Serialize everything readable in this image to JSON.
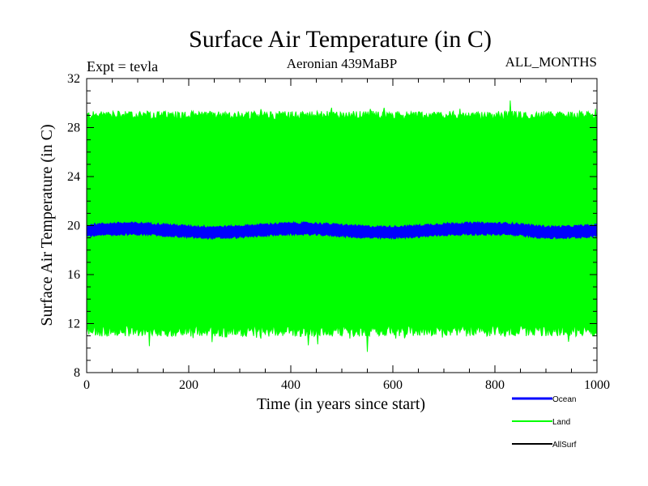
{
  "chart_data": {
    "type": "line",
    "title": "Surface Air Temperature (in C)",
    "subtitle": "Aeronian 439MaBP",
    "experiment_label": "Expt = tevla",
    "period_label": "ALL_MONTHS",
    "xlabel": "Time (in years since start)",
    "ylabel": "Surface Air Temperature (in C)",
    "xlim": [
      0,
      1000
    ],
    "ylim": [
      8,
      32
    ],
    "xticks": [
      0,
      200,
      400,
      600,
      800,
      1000
    ],
    "yticks": [
      8,
      12,
      16,
      20,
      24,
      28,
      32
    ],
    "series": [
      {
        "name": "Land",
        "color": "#00ff00",
        "description_range": [
          11,
          29.5
        ],
        "values_approx": {
          "mean": 20.2,
          "seasonal_amplitude": 8.8,
          "min_extreme": 9.7,
          "max_extreme": 30.2
        }
      },
      {
        "name": "Ocean",
        "color": "#0000ff",
        "values_approx": {
          "mean": 19.6,
          "seasonal_amplitude": 0.45
        }
      },
      {
        "name": "AllSurf",
        "color": "#000000"
      }
    ],
    "legend": {
      "placement": "bottom-right",
      "entries": [
        {
          "label": "Ocean",
          "color": "#0000ff"
        },
        {
          "label": "Land",
          "color": "#00ff00"
        },
        {
          "label": "AllSurf",
          "color": "#000000"
        }
      ]
    }
  }
}
